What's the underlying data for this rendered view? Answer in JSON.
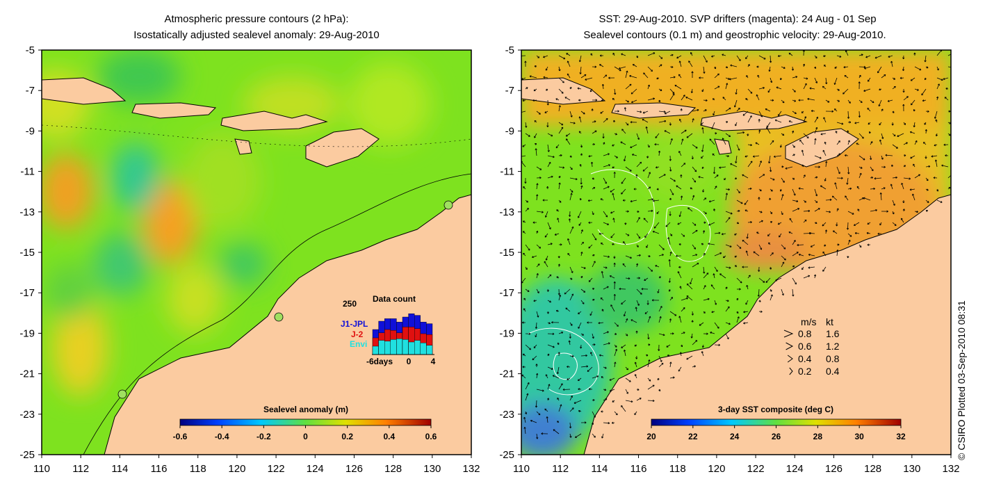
{
  "left_panel": {
    "title_line1": "Atmospheric pressure contours (2 hPa):",
    "title_line2": "Isostatically adjusted sealevel anomaly: 29-Aug-2010",
    "x_ticks": [
      "110",
      "112",
      "114",
      "116",
      "118",
      "120",
      "122",
      "124",
      "126",
      "128",
      "130",
      "132"
    ],
    "y_ticks": [
      "-5",
      "-7",
      "-9",
      "-11",
      "-13",
      "-15",
      "-17",
      "-19",
      "-21",
      "-23",
      "-25"
    ],
    "colorbar_title": "Sealevel anomaly (m)",
    "colorbar_ticks": [
      "-0.6",
      "-0.4",
      "-0.2",
      "0",
      "0.2",
      "0.4",
      "0.6"
    ],
    "inset": {
      "title": "Data count",
      "ymax_label": "250",
      "legend": [
        "J1-JPL",
        "J-2",
        "Envi"
      ],
      "xlabel_left": "-6days",
      "xlabel_mid": "0",
      "xlabel_right": "4",
      "bars_j1": [
        150,
        200,
        215,
        215,
        195,
        225,
        245,
        235,
        195,
        185
      ],
      "bars_j2": [
        100,
        130,
        150,
        145,
        130,
        165,
        165,
        155,
        125,
        120
      ],
      "bars_envi": [
        50,
        85,
        80,
        90,
        95,
        90,
        75,
        85,
        70,
        55
      ],
      "colors": {
        "j1": "#1010d8",
        "j2": "#e01010",
        "envi": "#20e0e0"
      }
    }
  },
  "right_panel": {
    "title_line1": "SST: 29-Aug-2010. SVP drifters (magenta): 24 Aug - 01 Sep",
    "title_line2": "Sealevel contours (0.1 m) and geostrophic velocity: 29-Aug-2010.",
    "x_ticks": [
      "110",
      "112",
      "114",
      "116",
      "118",
      "120",
      "122",
      "124",
      "126",
      "128",
      "130",
      "132"
    ],
    "y_ticks": [
      "-5",
      "-7",
      "-9",
      "-11",
      "-13",
      "-15",
      "-17",
      "-19",
      "-21",
      "-23",
      "-25"
    ],
    "colorbar_title": "3-day SST composite (deg C)",
    "colorbar_ticks": [
      "20",
      "22",
      "24",
      "26",
      "28",
      "30",
      "32"
    ],
    "velocity_legend": {
      "header_ms": "m/s",
      "header_kt": "kt",
      "rows": [
        {
          "ms": "0.8",
          "kt": "1.6"
        },
        {
          "ms": "0.6",
          "kt": "1.2"
        },
        {
          "ms": "0.4",
          "kt": "0.8"
        },
        {
          "ms": "0.2",
          "kt": "0.4"
        }
      ]
    }
  },
  "credit": "© CSIRO Plotted 03-Sep-2010 08:31",
  "colors": {
    "land": "#fbcba0",
    "anomaly_base": "#7ee21f",
    "sst_base": "#7ee21f"
  }
}
